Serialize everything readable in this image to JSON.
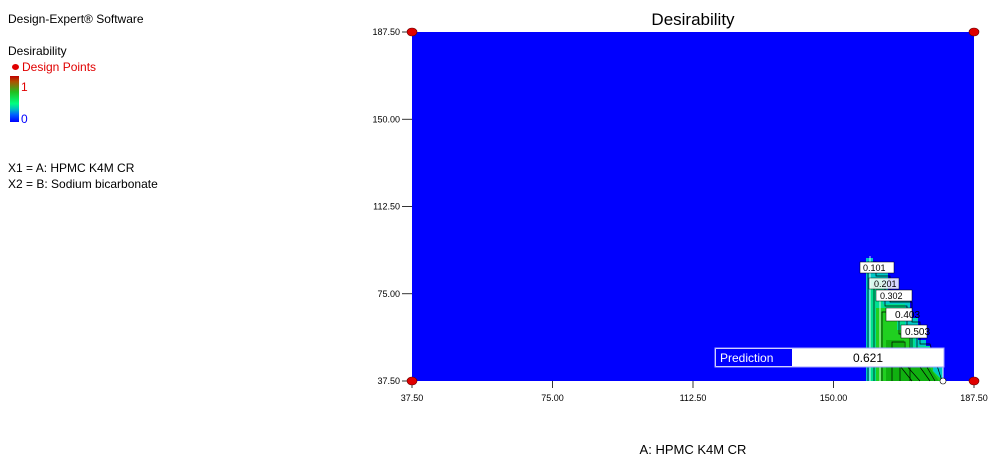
{
  "software": "Design-Expert® Software",
  "legend": {
    "response_name": "Desirability",
    "design_points_label": "Design Points",
    "high_label": "1",
    "low_label": "0",
    "factors": [
      "X1 = A: HPMC K4M CR",
      "X2 = B: Sodium bicarbonate"
    ]
  },
  "colors": {
    "background_fill": "#0000ff",
    "design_point": "#e00000",
    "legend_text_red": "#e00000",
    "legend_text_blue": "#0000ff"
  },
  "chart_data": {
    "type": "contour",
    "title": "Desirability",
    "xlabel": "A: HPMC K4M CR",
    "ylabel": "",
    "xlim": [
      37.5,
      187.5
    ],
    "ylim": [
      37.5,
      187.5
    ],
    "x_ticks": [
      "37.50",
      "75.00",
      "112.50",
      "150.00",
      "187.50"
    ],
    "y_ticks": [
      "37.50",
      "75.00",
      "112.50",
      "150.00",
      "187.50"
    ],
    "contour_labels": [
      "0.101",
      "0.201",
      "0.302",
      "0.403",
      "0.503"
    ],
    "design_points": [
      {
        "x": 37.5,
        "y": 187.5
      },
      {
        "x": 187.5,
        "y": 187.5
      },
      {
        "x": 37.5,
        "y": 37.5
      },
      {
        "x": 187.5,
        "y": 37.5
      }
    ],
    "prediction": {
      "label": "Prediction",
      "value": "0.621"
    }
  }
}
